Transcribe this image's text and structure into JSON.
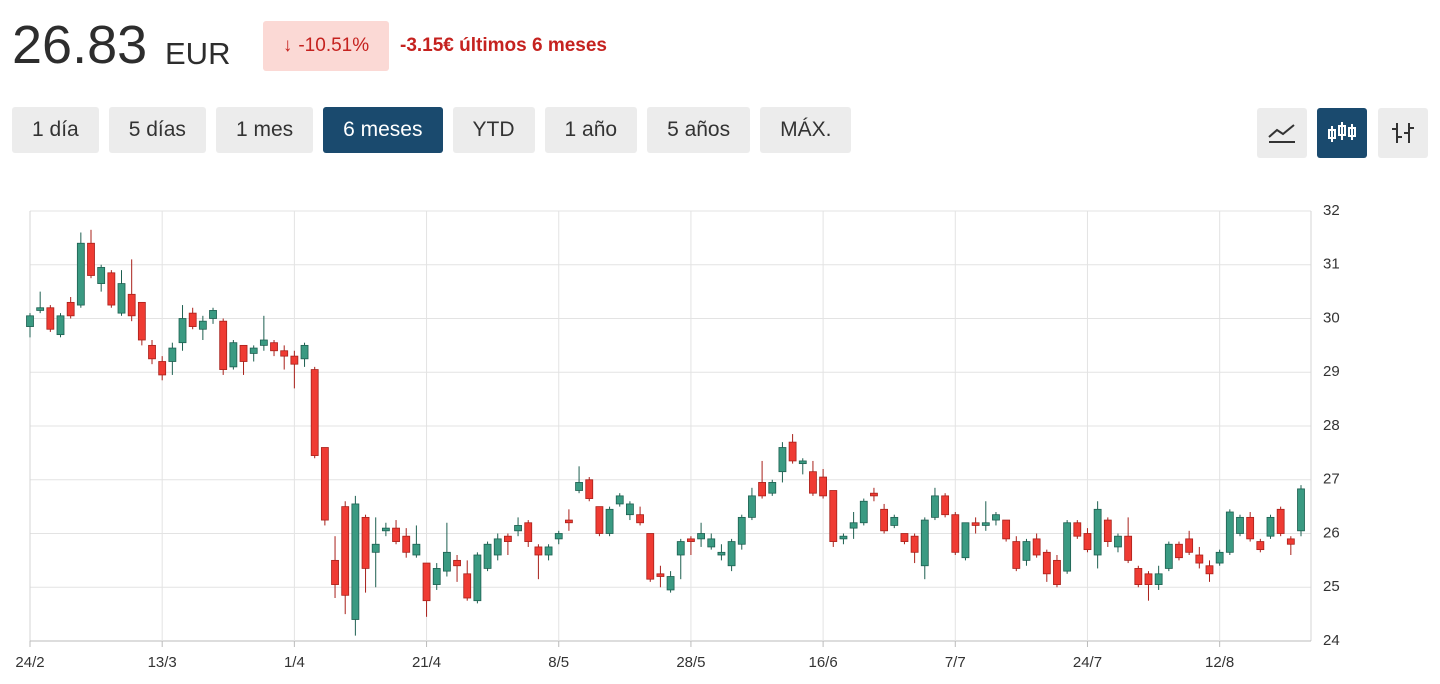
{
  "header": {
    "price": "26.83",
    "currency": "EUR",
    "change_pct": "-10.51%",
    "change_text": "-3.15€ últimos 6 meses"
  },
  "ranges": [
    "1 día",
    "5 días",
    "1 mes",
    "6 meses",
    "YTD",
    "1 año",
    "5 años",
    "MÁX."
  ],
  "active_range": "6 meses",
  "chart_data": {
    "type": "candlestick",
    "categories": [
      "24/2",
      null,
      null,
      null,
      null,
      null,
      null,
      null,
      null,
      null,
      null,
      null,
      null,
      "13/3",
      null,
      null,
      null,
      null,
      null,
      null,
      null,
      null,
      null,
      null,
      null,
      null,
      "1/4",
      null,
      null,
      null,
      null,
      null,
      null,
      null,
      null,
      null,
      null,
      null,
      null,
      "21/4",
      null,
      null,
      null,
      null,
      null,
      null,
      null,
      null,
      null,
      null,
      null,
      null,
      "8/5",
      null,
      null,
      null,
      null,
      null,
      null,
      null,
      null,
      null,
      null,
      null,
      null,
      "28/5",
      null,
      null,
      null,
      null,
      null,
      null,
      null,
      null,
      null,
      null,
      null,
      null,
      "16/6",
      null,
      null,
      null,
      null,
      null,
      null,
      null,
      null,
      null,
      null,
      null,
      null,
      "7/7",
      null,
      null,
      null,
      null,
      null,
      null,
      null,
      null,
      null,
      null,
      null,
      null,
      "24/7",
      null,
      null,
      null,
      null,
      null,
      null,
      null,
      null,
      null,
      null,
      null,
      null,
      "12/8",
      null,
      null,
      null,
      null,
      null,
      null,
      null,
      null
    ],
    "open": [
      29.85,
      30.15,
      30.2,
      29.7,
      30.3,
      30.25,
      31.4,
      30.65,
      30.85,
      30.1,
      30.45,
      30.3,
      29.5,
      29.2,
      29.2,
      29.55,
      30.1,
      29.8,
      30.0,
      29.95,
      29.1,
      29.5,
      29.35,
      29.5,
      29.55,
      29.4,
      29.3,
      29.25,
      29.05,
      27.6,
      25.5,
      26.5,
      24.4,
      26.3,
      25.65,
      26.05,
      26.1,
      25.95,
      25.6,
      25.45,
      25.05,
      25.3,
      25.5,
      25.25,
      24.75,
      25.35,
      25.6,
      25.95,
      26.05,
      26.2,
      25.75,
      25.6,
      25.9,
      26.25,
      26.8,
      27.0,
      26.5,
      26.0,
      26.55,
      26.35,
      26.35,
      26.0,
      25.25,
      24.95,
      25.6,
      25.9,
      25.9,
      25.75,
      25.6,
      25.4,
      25.8,
      26.3,
      26.95,
      26.75,
      27.15,
      27.7,
      27.3,
      27.15,
      27.05,
      26.8,
      25.9,
      26.1,
      26.2,
      26.75,
      26.45,
      26.15,
      26.0,
      25.95,
      25.4,
      26.3,
      26.7,
      26.35,
      25.55,
      26.2,
      26.15,
      26.25,
      26.25,
      25.85,
      25.5,
      25.9,
      25.65,
      25.5,
      25.3,
      26.2,
      26.0,
      25.6,
      26.25,
      25.75,
      25.95,
      25.35,
      25.25,
      25.05,
      25.35,
      25.8,
      25.9,
      25.6,
      25.4,
      25.45,
      25.65,
      26.0,
      26.3,
      25.85,
      25.95,
      26.45,
      25.9,
      26.05
    ],
    "high": [
      30.1,
      30.5,
      30.25,
      30.1,
      30.4,
      31.6,
      31.65,
      31.0,
      30.9,
      30.9,
      31.1,
      30.3,
      29.6,
      29.3,
      29.55,
      30.25,
      30.2,
      30.05,
      30.2,
      30.0,
      29.6,
      29.5,
      29.5,
      30.05,
      29.6,
      29.5,
      29.4,
      29.55,
      29.1,
      27.6,
      25.95,
      26.6,
      26.7,
      26.35,
      26.3,
      26.2,
      26.25,
      26.1,
      26.15,
      25.45,
      25.45,
      26.2,
      25.6,
      25.5,
      25.65,
      25.85,
      26.0,
      26.0,
      26.3,
      26.25,
      25.8,
      25.8,
      26.05,
      26.45,
      27.25,
      27.05,
      26.5,
      26.5,
      26.75,
      26.6,
      26.5,
      26.0,
      25.4,
      25.3,
      25.9,
      25.95,
      26.2,
      26.0,
      25.8,
      25.9,
      26.35,
      26.85,
      27.35,
      27.0,
      27.7,
      27.85,
      27.4,
      27.35,
      27.2,
      26.8,
      26.0,
      26.4,
      26.65,
      26.85,
      26.55,
      26.35,
      26.0,
      26.0,
      26.3,
      26.85,
      26.75,
      26.4,
      26.2,
      26.3,
      26.6,
      26.4,
      26.25,
      25.95,
      25.9,
      26.0,
      25.7,
      25.6,
      26.25,
      26.25,
      26.1,
      26.6,
      26.3,
      26.0,
      26.3,
      25.4,
      25.3,
      25.4,
      25.85,
      25.85,
      26.05,
      25.75,
      25.5,
      25.7,
      26.45,
      26.35,
      26.4,
      25.9,
      26.35,
      26.5,
      25.95,
      26.9
    ],
    "low": [
      29.65,
      30.1,
      29.75,
      29.65,
      30.0,
      30.2,
      30.75,
      30.5,
      30.2,
      30.05,
      29.95,
      29.5,
      29.15,
      28.85,
      28.95,
      29.4,
      29.8,
      29.6,
      29.9,
      28.95,
      29.05,
      28.95,
      29.2,
      29.4,
      29.3,
      29.05,
      28.7,
      29.1,
      27.4,
      26.15,
      24.8,
      24.5,
      24.1,
      24.9,
      25.0,
      25.95,
      25.8,
      25.55,
      25.55,
      24.45,
      24.95,
      25.2,
      25.1,
      24.75,
      24.7,
      25.3,
      25.5,
      25.6,
      25.95,
      25.75,
      25.15,
      25.5,
      25.8,
      26.05,
      26.75,
      26.6,
      25.95,
      25.95,
      26.5,
      26.25,
      26.15,
      25.1,
      25.0,
      24.9,
      25.15,
      25.6,
      25.75,
      25.7,
      25.5,
      25.3,
      25.7,
      26.25,
      26.65,
      26.7,
      26.95,
      27.3,
      27.1,
      26.7,
      26.65,
      25.75,
      25.8,
      25.9,
      26.15,
      26.6,
      26.0,
      26.1,
      25.8,
      25.45,
      25.15,
      26.25,
      26.3,
      25.6,
      25.5,
      26.0,
      26.05,
      26.15,
      25.85,
      25.3,
      25.4,
      25.55,
      25.1,
      25.0,
      25.25,
      25.9,
      25.65,
      25.35,
      25.75,
      25.65,
      25.45,
      25.0,
      24.75,
      24.95,
      25.3,
      25.5,
      25.6,
      25.35,
      25.1,
      25.4,
      25.6,
      25.95,
      25.85,
      25.65,
      25.9,
      25.95,
      25.6,
      25.95
    ],
    "close": [
      30.05,
      30.2,
      29.8,
      30.05,
      30.05,
      31.4,
      30.8,
      30.95,
      30.25,
      30.65,
      30.05,
      29.6,
      29.25,
      28.95,
      29.45,
      30.0,
      29.85,
      29.95,
      30.15,
      29.05,
      29.55,
      29.2,
      29.45,
      29.6,
      29.4,
      29.3,
      29.15,
      29.5,
      27.45,
      26.25,
      25.05,
      24.85,
      26.55,
      25.35,
      25.8,
      26.1,
      25.85,
      25.65,
      25.8,
      24.75,
      25.35,
      25.65,
      25.4,
      24.8,
      25.6,
      25.8,
      25.9,
      25.85,
      26.15,
      25.85,
      25.6,
      25.75,
      26.0,
      26.2,
      26.95,
      26.65,
      26.0,
      26.45,
      26.7,
      26.55,
      26.2,
      25.15,
      25.2,
      25.2,
      25.85,
      25.85,
      26.0,
      25.9,
      25.65,
      25.85,
      26.3,
      26.7,
      26.7,
      26.95,
      27.6,
      27.35,
      27.35,
      26.75,
      26.7,
      25.85,
      25.95,
      26.2,
      26.6,
      26.7,
      26.05,
      26.3,
      25.85,
      25.65,
      26.25,
      26.7,
      26.35,
      25.65,
      26.2,
      26.15,
      26.2,
      26.35,
      25.9,
      25.35,
      25.85,
      25.6,
      25.25,
      25.05,
      26.2,
      25.95,
      25.7,
      26.45,
      25.85,
      25.95,
      25.5,
      25.05,
      25.05,
      25.25,
      25.8,
      25.55,
      25.65,
      25.45,
      25.25,
      25.65,
      26.4,
      26.3,
      25.9,
      25.7,
      26.3,
      26.0,
      25.8,
      26.83
    ],
    "ylim": [
      24,
      32
    ],
    "yticks": [
      24,
      25,
      26,
      27,
      28,
      29,
      30,
      31,
      32
    ],
    "grid": true,
    "up_color": "#3a9a82",
    "down_color": "#ef3b33"
  }
}
